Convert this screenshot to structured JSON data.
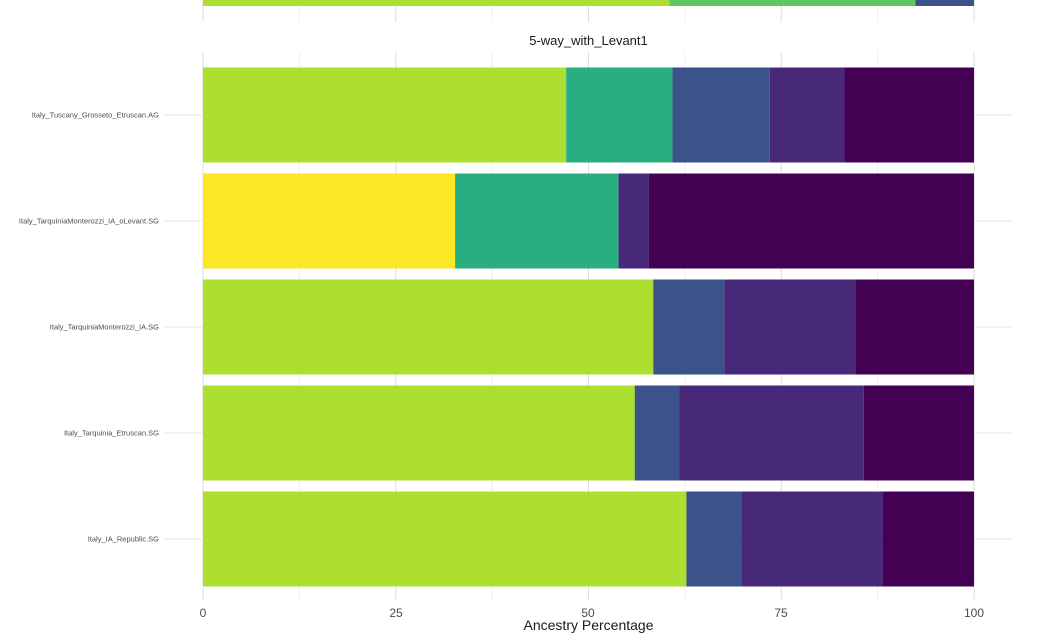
{
  "chart_data": {
    "type": "bar",
    "orientation": "horizontal",
    "stacked": true,
    "title": "5-way_with_Levant1",
    "xlabel": "Ancestry Percentage",
    "ylabel": "",
    "xlim": [
      0,
      100
    ],
    "xticks": [
      0,
      25,
      50,
      75,
      100
    ],
    "grid": true,
    "categories": [
      "Italy_Tuscany_Grosseto_Etruscan.AG",
      "Italy_TarquiniaMonterozzi_IA_oLevant.SG",
      "Italy_TarquiniaMonterozzi_IA.SG",
      "Italy_Tarquinia_Etruscan.SG",
      "Italy_IA_Republic.SG"
    ],
    "series": [
      {
        "color": "#fde725",
        "values": [
          0,
          32.7,
          0,
          0,
          0
        ]
      },
      {
        "color": "#addf31",
        "values": [
          47.1,
          0,
          58.4,
          56.0,
          62.7
        ]
      },
      {
        "color": "#28ae80",
        "values": [
          13.8,
          21.2,
          0,
          0,
          0
        ]
      },
      {
        "color": "#3b528b",
        "values": [
          12.6,
          0,
          9.2,
          5.8,
          7.1
        ]
      },
      {
        "color": "#482979",
        "values": [
          9.7,
          3.9,
          17.0,
          23.9,
          18.4
        ]
      },
      {
        "color": "#440154",
        "values": [
          16.8,
          42.2,
          15.4,
          14.3,
          11.8
        ]
      }
    ],
    "partial_bar_above": {
      "values": [
        60.5,
        31.9,
        7.6
      ],
      "colors": [
        "#addf31",
        "#5dc863",
        "#3b528b"
      ]
    }
  }
}
